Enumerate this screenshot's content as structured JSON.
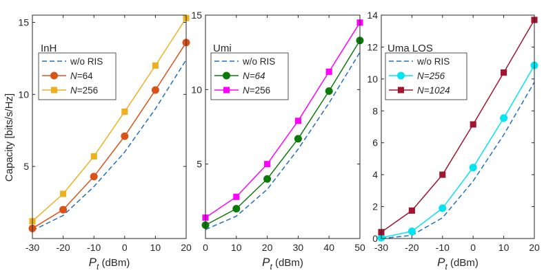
{
  "chart_data": [
    {
      "type": "line",
      "title": "InH",
      "xlabel_main": "P",
      "xlabel_sub": "t",
      "xlabel_unit": " (dBm)",
      "ylabel": "Capacity [bits/s/Hz]",
      "xlim": [
        -30,
        20
      ],
      "ylim": [
        0,
        15.5
      ],
      "xticks": [
        -30,
        -20,
        -10,
        0,
        10,
        20
      ],
      "xtick_labels": [
        "-30",
        "-20",
        "-10",
        "0",
        "10",
        "20"
      ],
      "yticks": [
        5,
        10,
        15
      ],
      "ytick_labels": [
        "5",
        "10",
        "15"
      ],
      "legend_position": "top-left",
      "series": [
        {
          "name": "w/o RIS",
          "name_var": "",
          "name_rest": "w/o RIS",
          "italic": false,
          "style": "dashed",
          "marker": "none",
          "color": "#1f6fc0",
          "x": [
            -30,
            -20,
            -10,
            0,
            10,
            20
          ],
          "values": [
            0.55,
            1.6,
            3.6,
            6.0,
            9.0,
            12.4
          ]
        },
        {
          "name": "N=64",
          "name_var": "N",
          "name_rest": "=64",
          "italic": false,
          "style": "solid",
          "marker": "circle",
          "color": "#d95319",
          "x": [
            -30,
            -20,
            -10,
            0,
            10,
            20
          ],
          "values": [
            0.7,
            2.0,
            4.3,
            7.1,
            10.3,
            13.6
          ]
        },
        {
          "name": "N=256",
          "name_var": "N",
          "name_rest": "=256",
          "italic": false,
          "style": "solid",
          "marker": "square",
          "color": "#edb120",
          "x": [
            -30,
            -20,
            -10,
            0,
            10,
            20
          ],
          "values": [
            1.2,
            3.1,
            5.7,
            8.8,
            12.0,
            15.3
          ]
        }
      ]
    },
    {
      "type": "line",
      "title": "Umi",
      "xlabel_main": "P",
      "xlabel_sub": "t",
      "xlabel_unit": " (dBm)",
      "ylabel": "",
      "xlim": [
        0,
        50
      ],
      "ylim": [
        0,
        15
      ],
      "xticks": [
        0,
        10,
        20,
        30,
        40,
        50
      ],
      "xtick_labels": [
        "0",
        "10",
        "20",
        "30",
        "40",
        "50"
      ],
      "yticks": [
        5,
        10,
        15
      ],
      "ytick_labels": [
        "5",
        "10",
        "15"
      ],
      "legend_position": "top-left",
      "series": [
        {
          "name": "w/o RIS",
          "name_var": "",
          "name_rest": "w/o RIS",
          "italic": false,
          "style": "dashed",
          "marker": "none",
          "color": "#1f6fc0",
          "x": [
            0,
            10,
            20,
            30,
            40,
            50
          ],
          "values": [
            0.6,
            1.5,
            3.3,
            6.0,
            9.1,
            12.5
          ]
        },
        {
          "name": "N=64",
          "name_var": "N",
          "name_rest": "=64",
          "italic": true,
          "style": "solid",
          "marker": "circle",
          "color": "#0a7a0a",
          "x": [
            0,
            10,
            20,
            30,
            40,
            50
          ],
          "values": [
            0.9,
            2.0,
            4.0,
            6.7,
            9.9,
            13.3
          ]
        },
        {
          "name": "N=256",
          "name_var": "N",
          "name_rest": "=256",
          "italic": false,
          "style": "solid",
          "marker": "square",
          "color": "#ff00ff",
          "x": [
            0,
            10,
            20,
            30,
            40,
            50
          ],
          "values": [
            1.4,
            2.8,
            5.0,
            7.9,
            11.2,
            14.5
          ]
        }
      ]
    },
    {
      "type": "line",
      "title": "Uma LOS",
      "xlabel_main": "P",
      "xlabel_sub": "t",
      "xlabel_unit": " (dBm)",
      "ylabel": "",
      "xlim": [
        -30,
        20
      ],
      "ylim": [
        0,
        14
      ],
      "xticks": [
        -30,
        -20,
        -10,
        0,
        10,
        20
      ],
      "xtick_labels": [
        "-30",
        "-20",
        "-10",
        "0",
        "10",
        "20"
      ],
      "yticks": [
        0,
        2,
        4,
        6,
        8,
        10,
        12,
        14
      ],
      "ytick_labels": [
        "0",
        "2",
        "4",
        "6",
        "8",
        "10",
        "12",
        "14"
      ],
      "legend_position": "top-left",
      "series": [
        {
          "name": "w/o RIS",
          "name_var": "",
          "name_rest": "w/o RIS",
          "italic": false,
          "style": "dashed",
          "marker": "none",
          "color": "#1f6fc0",
          "x": [
            -30,
            -20,
            -10,
            0,
            10,
            20
          ],
          "values": [
            0.0,
            0.2,
            1.3,
            3.6,
            6.5,
            9.8
          ]
        },
        {
          "name": "N=256",
          "name_var": "N",
          "name_rest": "=256",
          "italic": true,
          "style": "solid",
          "marker": "circle",
          "color": "#00e5f0",
          "x": [
            -30,
            -20,
            -10,
            0,
            10,
            20
          ],
          "values": [
            0.05,
            0.45,
            1.9,
            4.45,
            7.55,
            10.85
          ]
        },
        {
          "name": "N=1024",
          "name_var": "N",
          "name_rest": "=1024",
          "italic": true,
          "style": "solid",
          "marker": "square",
          "color": "#a2142f",
          "x": [
            -30,
            -20,
            -10,
            0,
            10,
            20
          ],
          "values": [
            0.4,
            1.75,
            4.0,
            7.15,
            10.4,
            13.7
          ]
        }
      ]
    }
  ]
}
